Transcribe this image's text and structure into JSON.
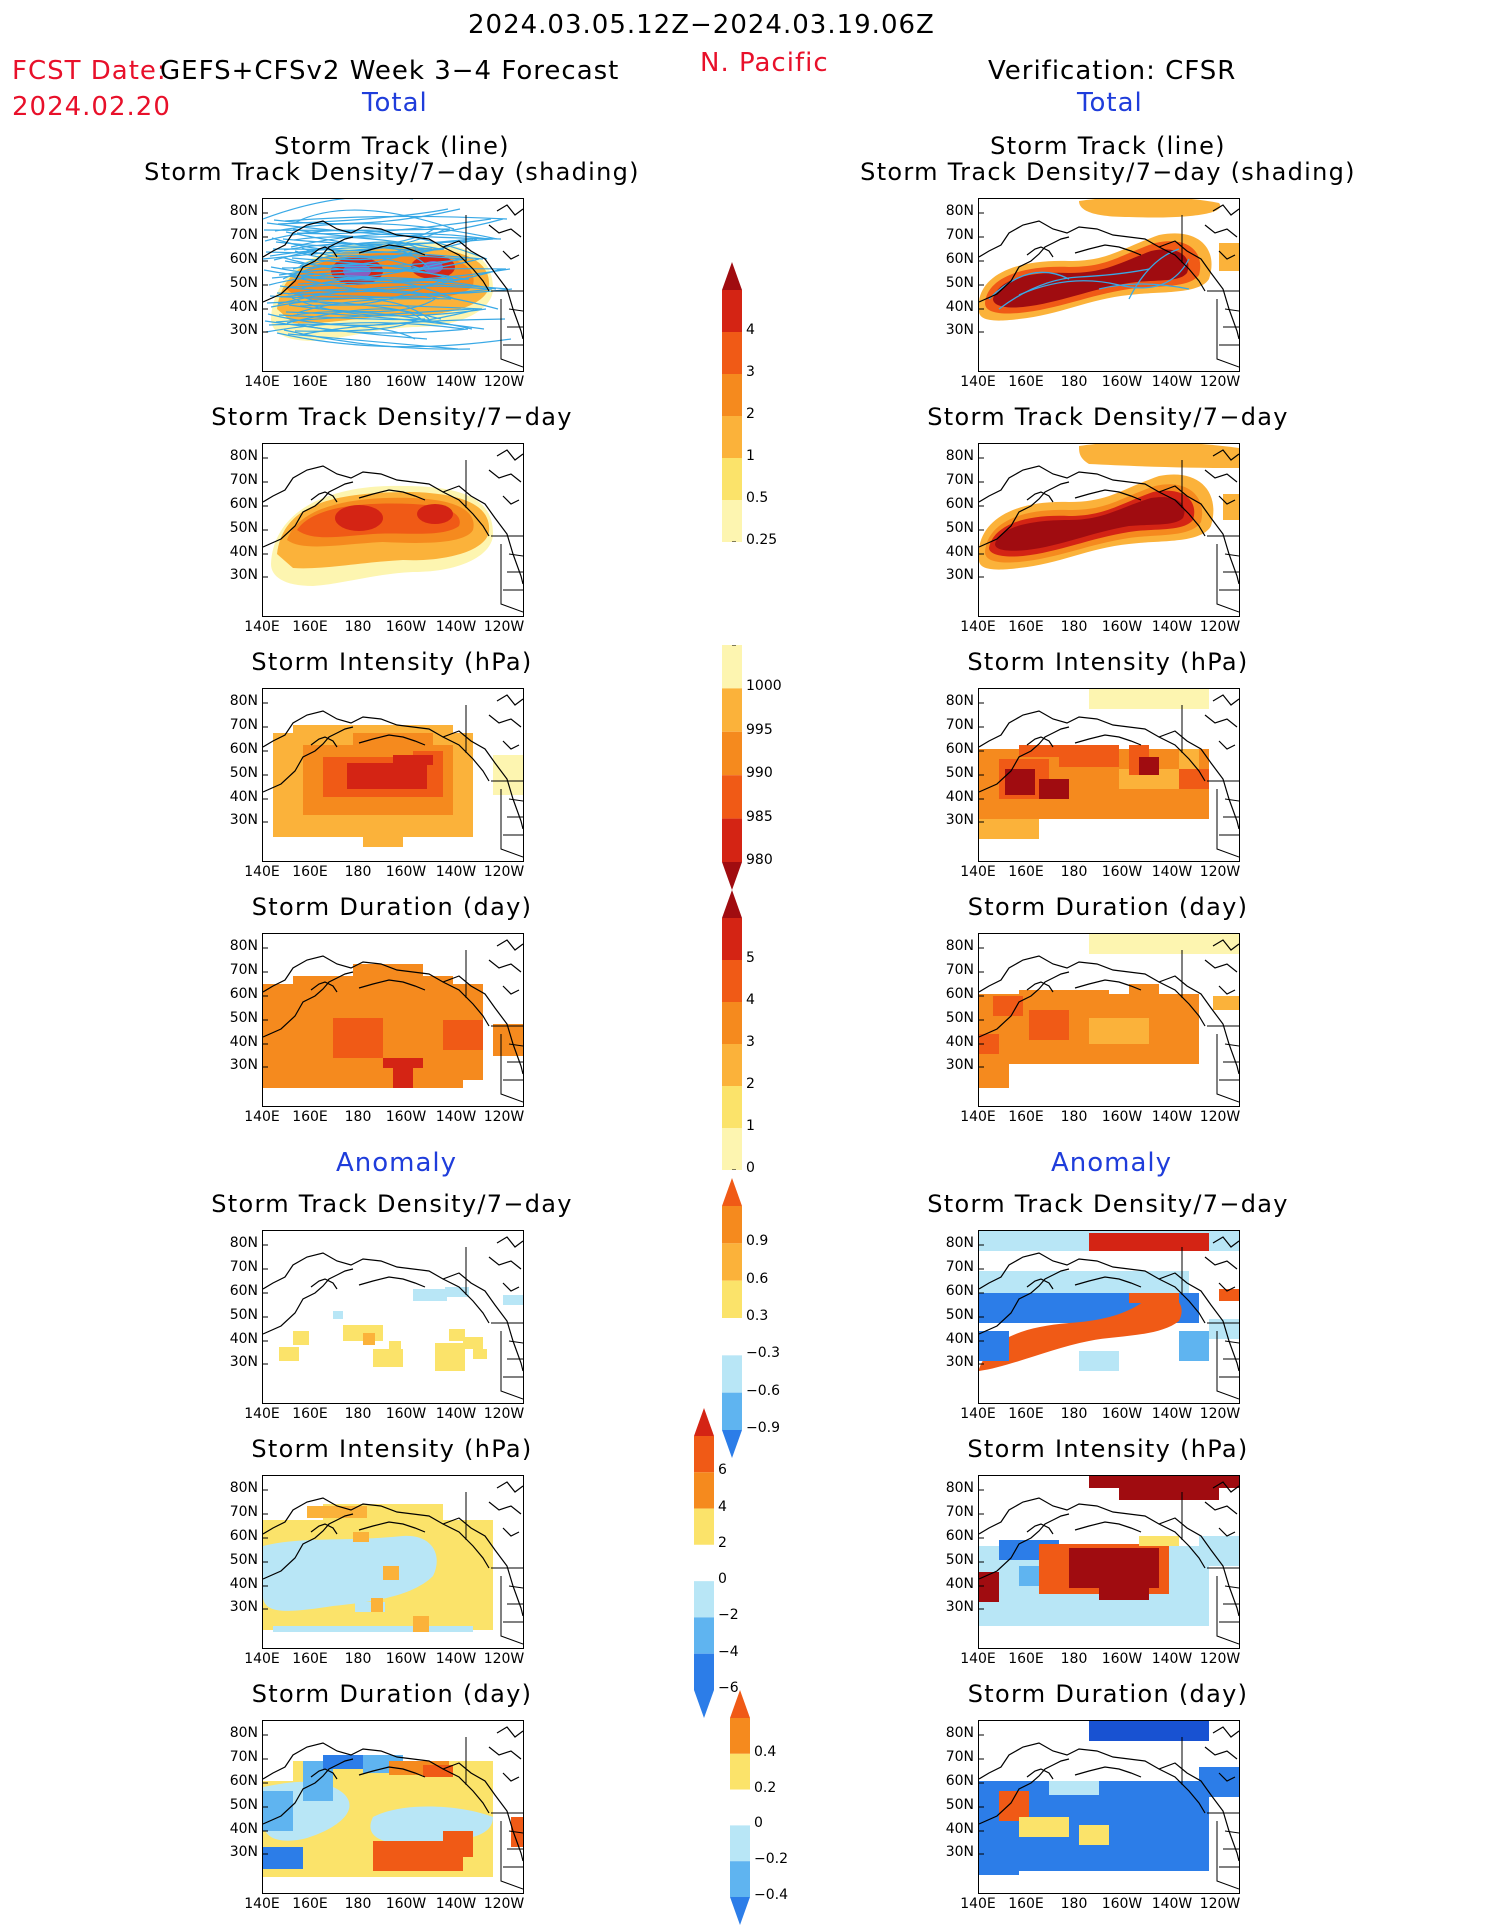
{
  "header": {
    "period": "2024.03.05.12Z−2024.03.19.06Z",
    "fcst_label": "FCST Date:",
    "fcst_date": "2024.02.20",
    "model": "GEFS+CFSv2 Week 3−4 Forecast",
    "region": "N. Pacific",
    "verification": "Verification: CFSR",
    "total_left": "Total",
    "total_right": "Total",
    "anomaly_left": "Anomaly",
    "anomaly_right": "Anomaly"
  },
  "axes": {
    "lat_ticks": [
      "80N",
      "70N",
      "60N",
      "50N",
      "40N",
      "30N"
    ],
    "lon_ticks": [
      "140E",
      "160E",
      "180",
      "160W",
      "140W",
      "120W"
    ]
  },
  "panels": {
    "track_title1": "Storm Track (line)",
    "track_title2": "Storm Track Density/7−day (shading)",
    "density": "Storm Track Density/7−day",
    "intensity": "Storm Intensity (hPa)",
    "duration": "Storm Duration (day)"
  },
  "colorbars": {
    "density": [
      "4",
      "3",
      "2",
      "1",
      "0.5",
      "0.25"
    ],
    "intensity": [
      "1000",
      "995",
      "990",
      "985",
      "980"
    ],
    "duration": [
      "5",
      "4",
      "3",
      "2",
      "1",
      "0"
    ],
    "density_anom": [
      "0.9",
      "0.6",
      "0.3",
      "−0.3",
      "−0.6",
      "−0.9"
    ],
    "intensity_anom": [
      "6",
      "4",
      "2",
      "0",
      "−2",
      "−4",
      "−6"
    ],
    "duration_anom": [
      "0.4",
      "0.2",
      "0",
      "−0.2",
      "−0.4"
    ]
  },
  "colors": {
    "yellow_light": "#fdf5b0",
    "yellow": "#fbe36a",
    "orange_light": "#fbb23a",
    "orange": "#f58a1e",
    "red_orange": "#f05a16",
    "red": "#d42414",
    "dark_red": "#a00c10",
    "blue_light": "#b8e6f6",
    "blue_mid": "#5fb4f0",
    "blue": "#2c7de8",
    "blue_dark": "#1852d2"
  }
}
